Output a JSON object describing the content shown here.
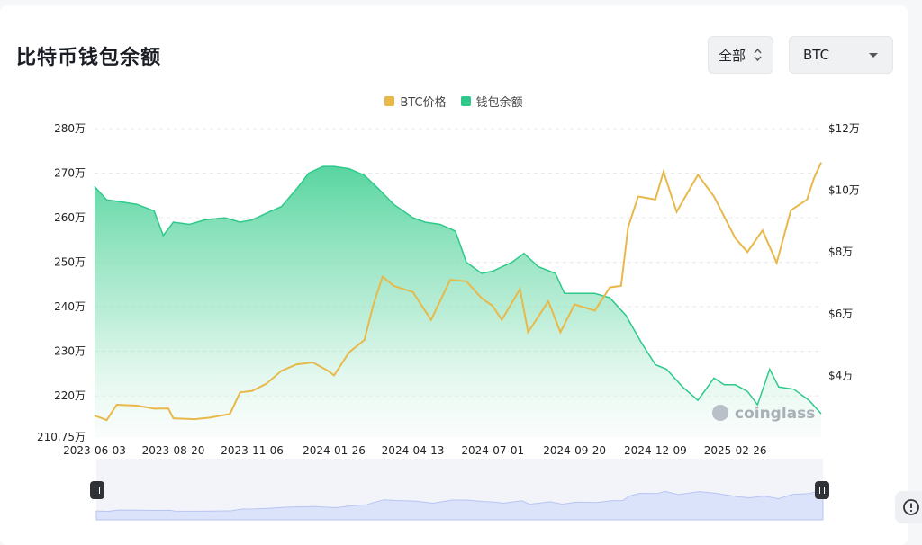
{
  "title": "比特币钱包余额",
  "controls": {
    "range_label": "全部",
    "coin_label": "BTC"
  },
  "watermark": "coinglass",
  "colors": {
    "btc_price": "#e8b94a",
    "balance": "#2ec98a",
    "balance_fill_top": "#5fd6a4",
    "navigator": "#dbe3fb"
  },
  "chart_data": {
    "type": "area",
    "legend": [
      "BTC价格",
      "钱包余额"
    ],
    "left_axis": {
      "ticks": [
        {
          "value": 2800000,
          "label": "280万"
        },
        {
          "value": 2700000,
          "label": "270万"
        },
        {
          "value": 2600000,
          "label": "260万"
        },
        {
          "value": 2500000,
          "label": "250万"
        },
        {
          "value": 2400000,
          "label": "240万"
        },
        {
          "value": 2300000,
          "label": "230万"
        },
        {
          "value": 2200000,
          "label": "220万"
        },
        {
          "value": 2107500,
          "label": "210.75万"
        }
      ],
      "range": [
        2107500,
        2800000
      ]
    },
    "right_axis": {
      "ticks": [
        {
          "value": 120000,
          "label": "$12万"
        },
        {
          "value": 100000,
          "label": "$10万"
        },
        {
          "value": 80000,
          "label": "$8万"
        },
        {
          "value": 60000,
          "label": "$6万"
        },
        {
          "value": 40000,
          "label": "$4万"
        }
      ],
      "range": [
        20000,
        120000
      ]
    },
    "x_ticks": [
      "2023-06-03",
      "2023-08-20",
      "2023-11-06",
      "2024-01-26",
      "2024-04-13",
      "2024-07-01",
      "2024-09-20",
      "2024-12-09",
      "2025-02-26"
    ],
    "x_range": [
      "2023-06-03",
      "2025-05-22"
    ],
    "series": [
      {
        "name": "钱包余额",
        "axis": "left",
        "points": [
          [
            "2023-06-03",
            2670000
          ],
          [
            "2023-06-15",
            2640000
          ],
          [
            "2023-07-01",
            2635000
          ],
          [
            "2023-07-15",
            2630000
          ],
          [
            "2023-08-01",
            2615000
          ],
          [
            "2023-08-10",
            2560000
          ],
          [
            "2023-08-20",
            2590000
          ],
          [
            "2023-09-05",
            2585000
          ],
          [
            "2023-09-20",
            2595000
          ],
          [
            "2023-10-10",
            2600000
          ],
          [
            "2023-10-25",
            2590000
          ],
          [
            "2023-11-06",
            2595000
          ],
          [
            "2023-11-20",
            2610000
          ],
          [
            "2023-12-05",
            2625000
          ],
          [
            "2023-12-20",
            2665000
          ],
          [
            "2024-01-01",
            2700000
          ],
          [
            "2024-01-15",
            2715000
          ],
          [
            "2024-01-26",
            2715000
          ],
          [
            "2024-02-10",
            2710000
          ],
          [
            "2024-02-25",
            2695000
          ],
          [
            "2024-03-10",
            2665000
          ],
          [
            "2024-03-25",
            2630000
          ],
          [
            "2024-04-13",
            2600000
          ],
          [
            "2024-04-25",
            2590000
          ],
          [
            "2024-05-10",
            2585000
          ],
          [
            "2024-05-25",
            2570000
          ],
          [
            "2024-06-05",
            2500000
          ],
          [
            "2024-06-20",
            2475000
          ],
          [
            "2024-07-01",
            2480000
          ],
          [
            "2024-07-20",
            2500000
          ],
          [
            "2024-08-01",
            2520000
          ],
          [
            "2024-08-15",
            2490000
          ],
          [
            "2024-09-01",
            2475000
          ],
          [
            "2024-09-10",
            2430000
          ],
          [
            "2024-09-20",
            2430000
          ],
          [
            "2024-10-10",
            2430000
          ],
          [
            "2024-10-25",
            2420000
          ],
          [
            "2024-11-10",
            2380000
          ],
          [
            "2024-11-25",
            2320000
          ],
          [
            "2024-12-09",
            2270000
          ],
          [
            "2024-12-20",
            2260000
          ],
          [
            "2025-01-05",
            2220000
          ],
          [
            "2025-01-20",
            2190000
          ],
          [
            "2025-02-05",
            2240000
          ],
          [
            "2025-02-15",
            2225000
          ],
          [
            "2025-02-26",
            2225000
          ],
          [
            "2025-03-10",
            2210000
          ],
          [
            "2025-03-20",
            2180000
          ],
          [
            "2025-04-01",
            2260000
          ],
          [
            "2025-04-10",
            2220000
          ],
          [
            "2025-04-25",
            2215000
          ],
          [
            "2025-05-10",
            2190000
          ],
          [
            "2025-05-22",
            2160000
          ]
        ]
      },
      {
        "name": "BTC价格",
        "axis": "right",
        "points": [
          [
            "2023-06-03",
            27000
          ],
          [
            "2023-06-15",
            25500
          ],
          [
            "2023-06-25",
            30500
          ],
          [
            "2023-07-15",
            30200
          ],
          [
            "2023-08-01",
            29200
          ],
          [
            "2023-08-15",
            29300
          ],
          [
            "2023-08-20",
            26100
          ],
          [
            "2023-09-10",
            25800
          ],
          [
            "2023-09-25",
            26300
          ],
          [
            "2023-10-15",
            27500
          ],
          [
            "2023-10-25",
            34500
          ],
          [
            "2023-11-06",
            35000
          ],
          [
            "2023-11-20",
            37300
          ],
          [
            "2023-12-05",
            41500
          ],
          [
            "2023-12-20",
            43600
          ],
          [
            "2024-01-05",
            44200
          ],
          [
            "2024-01-20",
            41500
          ],
          [
            "2024-01-26",
            40000
          ],
          [
            "2024-02-10",
            47500
          ],
          [
            "2024-02-25",
            51500
          ],
          [
            "2024-03-05",
            63000
          ],
          [
            "2024-03-14",
            72000
          ],
          [
            "2024-03-25",
            69000
          ],
          [
            "2024-04-13",
            67000
          ],
          [
            "2024-05-01",
            58000
          ],
          [
            "2024-05-20",
            71000
          ],
          [
            "2024-06-05",
            70500
          ],
          [
            "2024-06-20",
            65000
          ],
          [
            "2024-07-01",
            62500
          ],
          [
            "2024-07-10",
            58000
          ],
          [
            "2024-07-28",
            68000
          ],
          [
            "2024-08-05",
            54000
          ],
          [
            "2024-08-25",
            64000
          ],
          [
            "2024-09-06",
            54000
          ],
          [
            "2024-09-20",
            63000
          ],
          [
            "2024-10-10",
            61000
          ],
          [
            "2024-10-25",
            68500
          ],
          [
            "2024-11-05",
            69000
          ],
          [
            "2024-11-12",
            88000
          ],
          [
            "2024-11-22",
            98000
          ],
          [
            "2024-12-09",
            97000
          ],
          [
            "2024-12-17",
            106000
          ],
          [
            "2024-12-30",
            93000
          ],
          [
            "2025-01-20",
            105000
          ],
          [
            "2025-02-05",
            98000
          ],
          [
            "2025-02-26",
            84500
          ],
          [
            "2025-03-10",
            80000
          ],
          [
            "2025-03-25",
            87000
          ],
          [
            "2025-04-08",
            76500
          ],
          [
            "2025-04-22",
            93500
          ],
          [
            "2025-05-08",
            97000
          ],
          [
            "2025-05-15",
            104000
          ],
          [
            "2025-05-22",
            109000
          ]
        ]
      }
    ],
    "grid": true,
    "navigator": true
  }
}
